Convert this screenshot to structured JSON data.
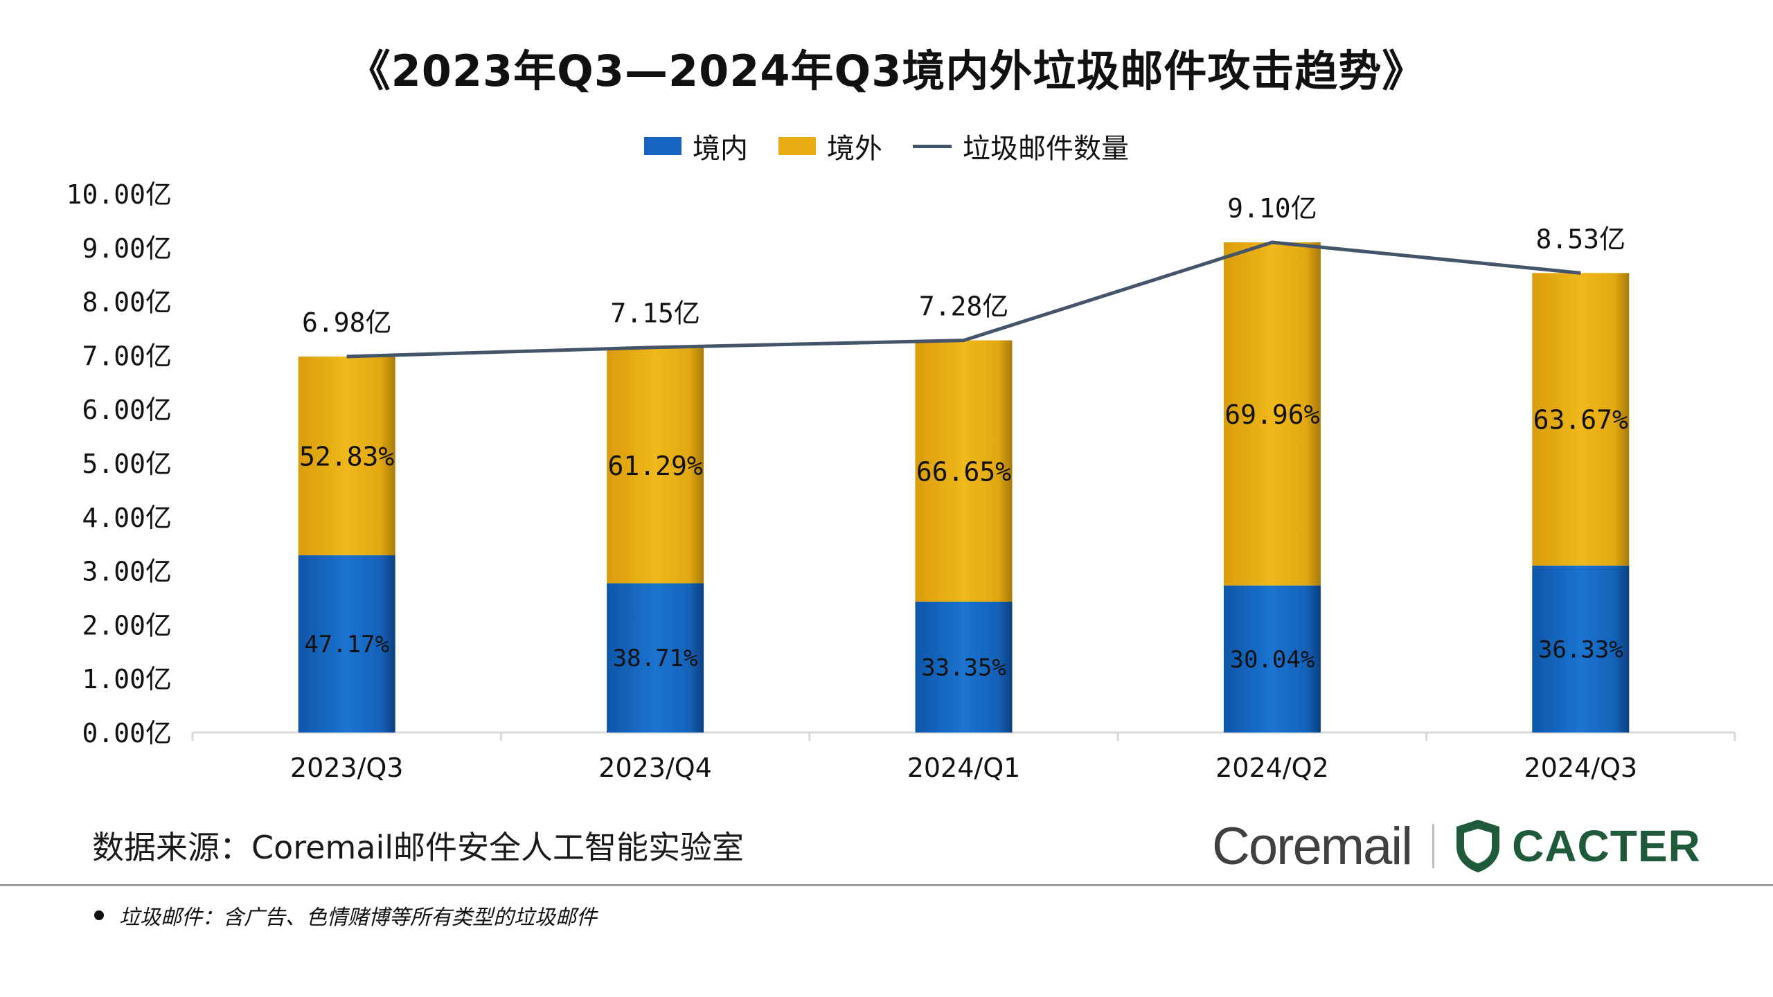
{
  "title": "《2023年Q3—2024年Q3境内外垃圾邮件攻击趋势》",
  "legend": {
    "domestic": "境内",
    "foreign": "境外",
    "total": "垃圾邮件数量"
  },
  "colors": {
    "domestic": "#1565c0",
    "foreign": "#e8ad12",
    "line": "#44546a",
    "axis": "#d9d9d9"
  },
  "chart_data": {
    "type": "bar",
    "stacked": true,
    "categories": [
      "2023/Q3",
      "2023/Q4",
      "2024/Q1",
      "2024/Q2",
      "2024/Q3"
    ],
    "series": [
      {
        "name": "境内",
        "values": [
          3.29,
          2.77,
          2.43,
          2.73,
          3.1
        ],
        "share_labels": [
          "47.17%",
          "38.71%",
          "33.35%",
          "30.04%",
          "36.33%"
        ]
      },
      {
        "name": "境外",
        "values": [
          3.69,
          4.38,
          4.85,
          6.37,
          5.43
        ],
        "share_labels": [
          "52.83%",
          "61.29%",
          "66.65%",
          "69.96%",
          "63.67%"
        ]
      },
      {
        "name": "垃圾邮件数量",
        "type": "line",
        "values": [
          6.98,
          7.15,
          7.28,
          9.1,
          8.53
        ],
        "labels": [
          "6.98亿",
          "7.15亿",
          "7.28亿",
          "9.10亿",
          "8.53亿"
        ]
      }
    ],
    "yticks": [
      "0.00亿",
      "1.00亿",
      "2.00亿",
      "3.00亿",
      "4.00亿",
      "5.00亿",
      "6.00亿",
      "7.00亿",
      "8.00亿",
      "9.00亿",
      "10.00亿"
    ],
    "ylim": [
      0,
      10
    ],
    "legend_position": "top-center",
    "grid": false
  },
  "source": "数据来源：Coremail邮件安全人工智能实验室",
  "logos": {
    "coremail": "Coremail",
    "cacter": "CACTER"
  },
  "footnote": "垃圾邮件：含广告、色情赌博等所有类型的垃圾邮件"
}
